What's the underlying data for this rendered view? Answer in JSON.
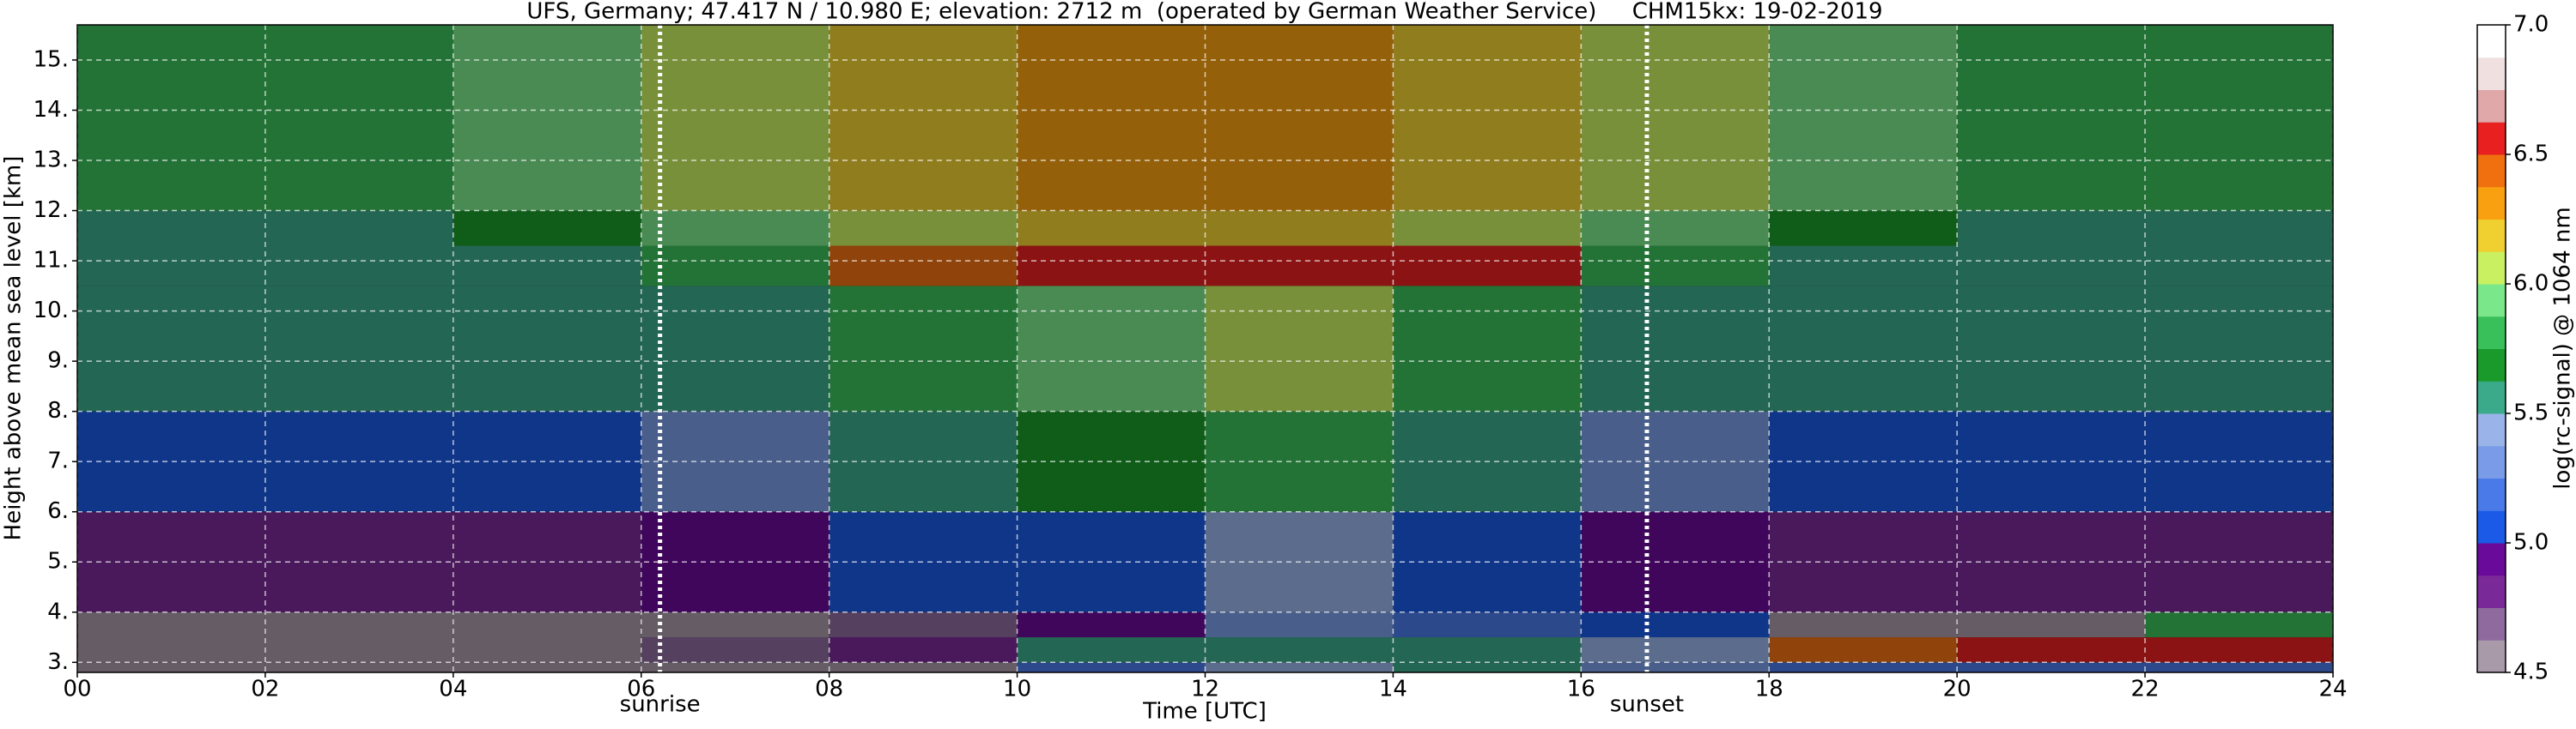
{
  "chart_data": {
    "type": "heatmap",
    "title": "UFS, Germany; 47.417 N / 10.980 E; elevation: 2712 m  (operated by German Weather Service)     CHM15kx: 19-02-2019",
    "x_label": "Time [UTC]",
    "y_label": "Height above mean sea level [km]",
    "xlim": [
      0,
      24
    ],
    "ylim": [
      2.8,
      15.7
    ],
    "xticks": [
      {
        "value": 0,
        "label": "00"
      },
      {
        "value": 2,
        "label": "02"
      },
      {
        "value": 4,
        "label": "04"
      },
      {
        "value": 6,
        "label": "06"
      },
      {
        "value": 8,
        "label": "08"
      },
      10,
      12,
      14,
      16,
      18,
      20,
      22,
      24
    ],
    "yticks": [
      {
        "value": 3,
        "label": "3."
      },
      {
        "value": 4,
        "label": "4."
      },
      {
        "value": 5,
        "label": "5."
      },
      {
        "value": 6,
        "label": "6."
      },
      {
        "value": 7,
        "label": "7."
      },
      {
        "value": 8,
        "label": "8."
      },
      {
        "value": 9,
        "label": "9."
      },
      {
        "value": 10,
        "label": "10."
      },
      {
        "value": 11,
        "label": "11."
      },
      {
        "value": 12,
        "label": "12."
      },
      {
        "value": 13,
        "label": "13."
      },
      {
        "value": 14,
        "label": "14."
      },
      {
        "value": 15,
        "label": "15."
      }
    ],
    "grid": true,
    "x_bins": [
      0,
      2,
      4,
      6,
      8,
      10,
      12,
      14,
      16,
      18,
      20,
      22,
      24
    ],
    "y_bins": [
      2.8,
      3.0,
      3.5,
      4.0,
      6.0,
      8.0,
      10.5,
      11.3,
      12.0,
      15.7
    ],
    "z": [
      [
        4.5,
        4.5,
        4.5,
        4.5,
        4.6,
        5.2,
        5.4,
        5.5,
        5.3,
        5.2,
        5.2,
        5.2
      ],
      [
        4.6,
        4.6,
        4.6,
        4.7,
        4.8,
        5.5,
        5.6,
        5.6,
        5.4,
        6.4,
        6.6,
        6.5
      ],
      [
        4.6,
        4.6,
        4.6,
        4.6,
        4.7,
        4.9,
        5.3,
        5.2,
        5.0,
        4.5,
        4.5,
        5.8
      ],
      [
        4.8,
        4.8,
        4.8,
        4.9,
        5.0,
        5.1,
        5.4,
        5.1,
        4.9,
        4.8,
        4.8,
        4.8
      ],
      [
        5.1,
        5.1,
        5.1,
        5.3,
        5.5,
        5.7,
        5.8,
        5.6,
        5.3,
        5.1,
        5.1,
        5.1
      ],
      [
        5.5,
        5.5,
        5.5,
        5.6,
        5.8,
        5.9,
        6.0,
        5.8,
        5.6,
        5.5,
        5.5,
        5.5
      ],
      [
        5.6,
        5.6,
        5.6,
        5.8,
        6.4,
        6.6,
        6.6,
        6.5,
        5.8,
        5.6,
        5.6,
        5.6
      ],
      [
        5.6,
        5.6,
        5.7,
        5.9,
        6.1,
        6.2,
        6.2,
        6.1,
        5.9,
        5.7,
        5.6,
        5.6
      ],
      [
        5.8,
        5.8,
        5.9,
        6.0,
        6.2,
        6.3,
        6.3,
        6.2,
        6.0,
        5.9,
        5.8,
        5.8
      ]
    ],
    "annotations": [
      {
        "text": "sunrise",
        "x": 6.2
      },
      {
        "text": "sunset",
        "x": 16.7
      }
    ],
    "colorbar": {
      "label": "log(rc-signal) @ 1064 nm",
      "lim": [
        4.5,
        7.0
      ],
      "ticks": [
        4.5,
        {
          "value": 5,
          "label": "5.0"
        },
        5.5,
        {
          "value": 6,
          "label": "6.0"
        },
        6.5,
        {
          "value": 7,
          "label": "7.0"
        }
      ],
      "colors": [
        "#a89aa8",
        "#8e6a9e",
        "#7a2a98",
        "#6a0a9a",
        "#1a5ae6",
        "#4a7ae8",
        "#7a9ce8",
        "#9ab4ea",
        "#3aaa8a",
        "#1a9a2a",
        "#3ac05a",
        "#7ae88a",
        "#c8f060",
        "#f0d030",
        "#f8a010",
        "#f07010",
        "#e82020",
        "#e0a8a8",
        "#f0e0e0",
        "#ffffff"
      ]
    }
  }
}
